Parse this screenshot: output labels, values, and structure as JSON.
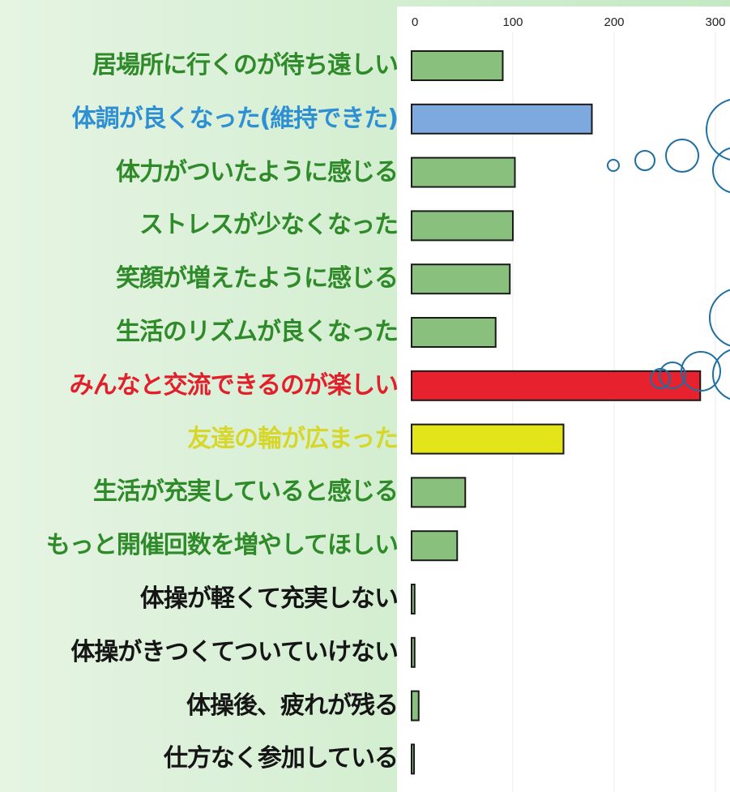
{
  "chart_data": {
    "type": "bar",
    "orientation": "horizontal",
    "title": "",
    "xlabel": "",
    "ylabel": "",
    "xlim": [
      0,
      310
    ],
    "x_ticks": [
      0,
      100,
      200,
      300
    ],
    "grid": true,
    "categories": [
      "居場所に行くのが待ち遠しい",
      "体調が良くなった(維持できた)",
      "体力がついたように感じる",
      "ストレスが少なくなった",
      "笑顔が増えたように感じる",
      "生活のリズムが良くなった",
      "みんなと交流できるのが楽しい",
      "友達の輪が広まった",
      "生活が充実していると感じる",
      "もっと開催回数を増やしてほしい",
      "体操が軽くて充実しない",
      "体操がきつくてついていけない",
      "体操後、疲れが残る",
      "仕方なく参加している"
    ],
    "values": [
      90,
      178,
      102,
      100,
      97,
      83,
      285,
      150,
      53,
      45,
      3,
      3,
      7,
      2
    ],
    "bar_colors": [
      "#8ac07d",
      "#7ea9df",
      "#8ac07d",
      "#8ac07d",
      "#8ac07d",
      "#8ac07d",
      "#e8212e",
      "#e3e51a",
      "#8ac07d",
      "#8ac07d",
      "#8ac07d",
      "#8ac07d",
      "#8ac07d",
      "#8ac07d"
    ],
    "label_colors": [
      "#2f8a2a",
      "#2e8fd3",
      "#2f8a2a",
      "#2f8a2a",
      "#2f8a2a",
      "#2f8a2a",
      "#e2202c",
      "#d7d62a",
      "#2f8a2a",
      "#2f8a2a",
      "#151515",
      "#151515",
      "#151515",
      "#151515"
    ]
  }
}
